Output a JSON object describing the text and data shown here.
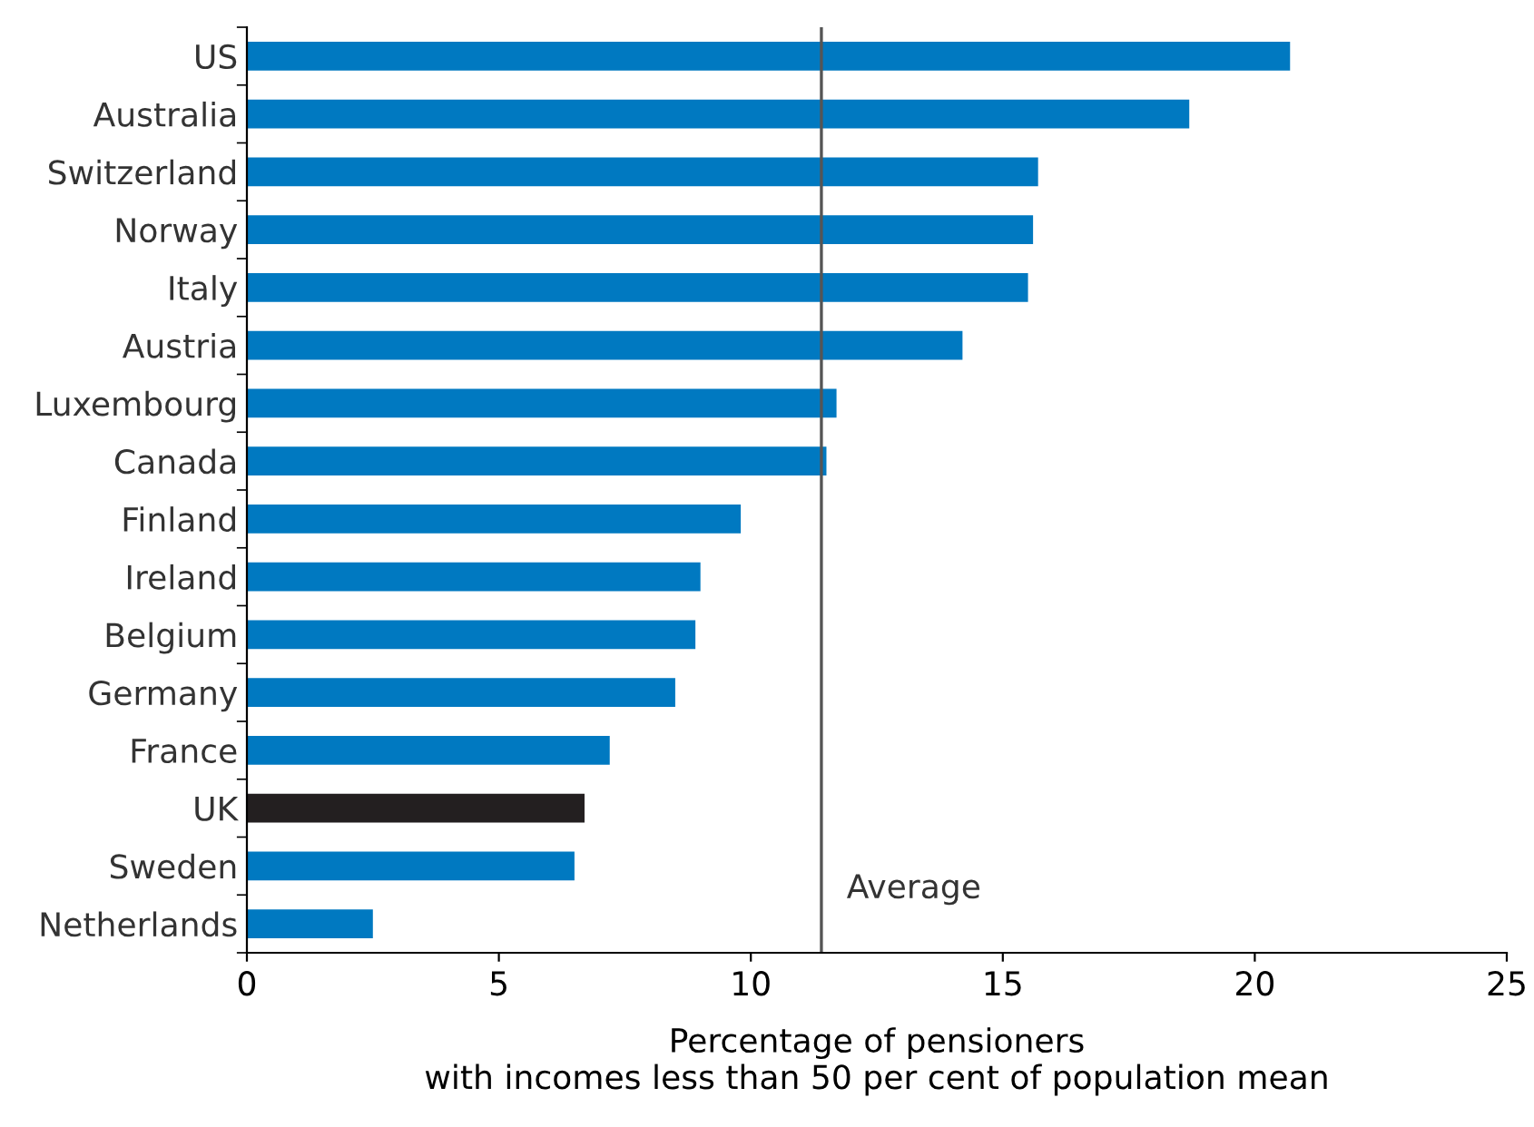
{
  "chart_data": {
    "type": "bar",
    "orientation": "horizontal",
    "xlabel": "Percentage of pensioners\nwith incomes less than 50 per cent of population mean",
    "categories": [
      "US",
      "Australia",
      "Switzerland",
      "Norway",
      "Italy",
      "Austria",
      "Luxembourg",
      "Canada",
      "Finland",
      "Ireland",
      "Belgium",
      "Germany",
      "France",
      "UK",
      "Sweden",
      "Netherlands"
    ],
    "values": [
      20.7,
      18.7,
      15.7,
      15.6,
      15.5,
      14.2,
      11.7,
      11.5,
      9.8,
      9.0,
      8.9,
      8.5,
      7.2,
      6.7,
      6.5,
      2.5
    ],
    "colors": [
      "#0079c1",
      "#0079c1",
      "#0079c1",
      "#0079c1",
      "#0079c1",
      "#0079c1",
      "#0079c1",
      "#0079c1",
      "#0079c1",
      "#0079c1",
      "#0079c1",
      "#0079c1",
      "#0079c1",
      "#231f20",
      "#0079c1",
      "#0079c1"
    ],
    "xlim": [
      0,
      25
    ],
    "xticks": [
      0,
      5,
      10,
      15,
      20,
      25
    ],
    "ref_lines": [
      {
        "axis": "x",
        "value": 11.4,
        "label": "Average",
        "color": "#555555"
      }
    ],
    "grid": false,
    "legend": false
  }
}
